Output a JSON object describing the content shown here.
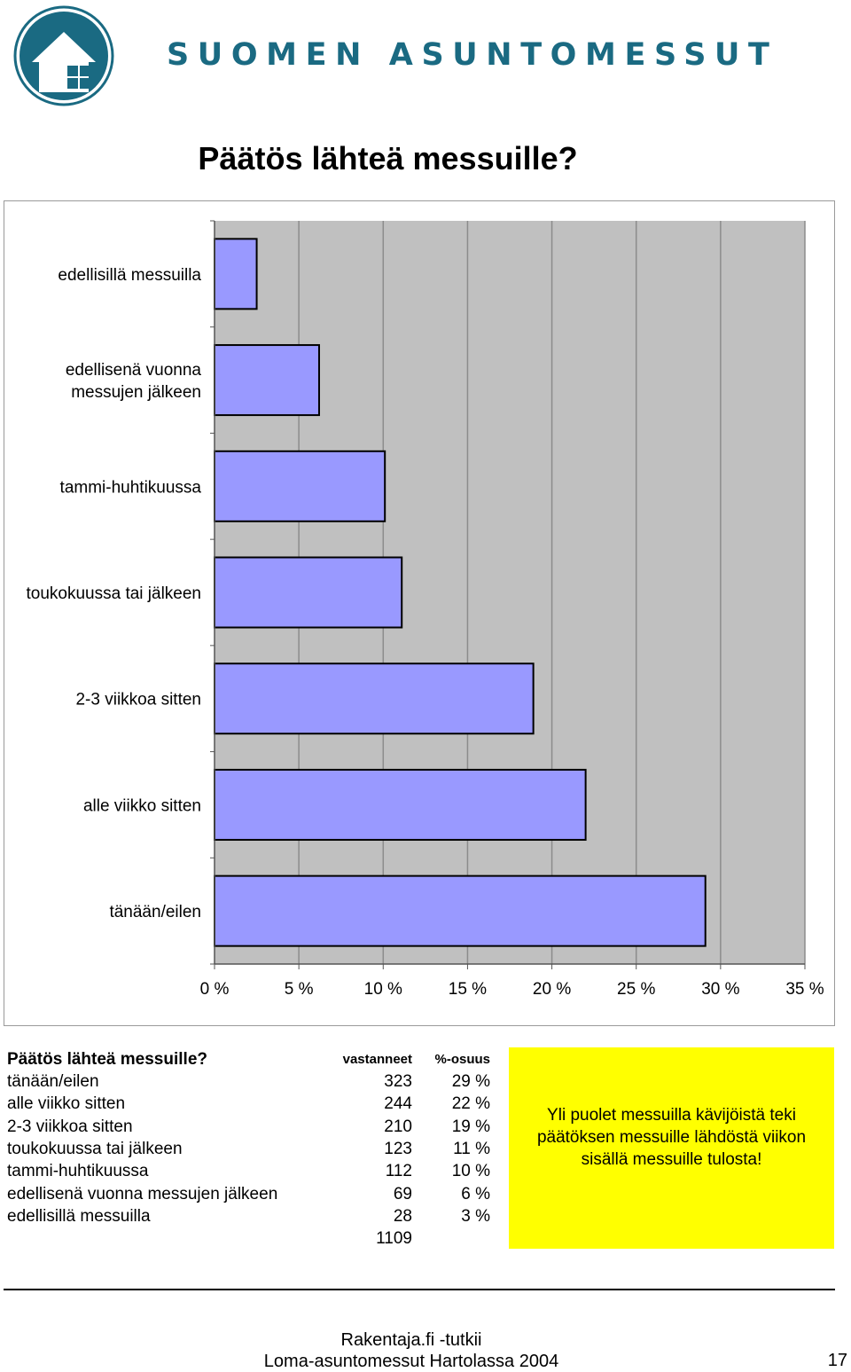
{
  "header": {
    "brand": "SUOMEN ASUNTOMESSUT",
    "title": "Päätös lähteä messuille?"
  },
  "chart_data": {
    "type": "bar",
    "orientation": "horizontal",
    "title": "",
    "xlabel": "",
    "ylabel": "",
    "categories": [
      "edellisillä messuilla",
      "edellisenä vuonna messujen jälkeen",
      "tammi-huhtikuussa",
      "toukokuussa tai jälkeen",
      "2-3 viikkoa sitten",
      "alle viikko sitten",
      "tänään/eilen"
    ],
    "category_labels": [
      [
        "edellisillä messuilla"
      ],
      [
        "edellisenä vuonna",
        "messujen jälkeen"
      ],
      [
        "tammi-huhtikuussa"
      ],
      [
        "toukokuussa tai jälkeen"
      ],
      [
        "2-3 viikkoa sitten"
      ],
      [
        "alle viikko sitten"
      ],
      [
        "tänään/eilen"
      ]
    ],
    "values": [
      2.5,
      6.2,
      10.1,
      11.1,
      18.9,
      22.0,
      29.1
    ],
    "xlim": [
      0,
      35
    ],
    "xticks": [
      0,
      5,
      10,
      15,
      20,
      25,
      30,
      35
    ],
    "xtick_labels": [
      "0 %",
      "5 %",
      "10 %",
      "15 %",
      "20 %",
      "25 %",
      "30 %",
      "35 %"
    ],
    "grid": "vertical",
    "legend": "none",
    "bar_color": "#9999ff",
    "plot_background": "#c0c0c0",
    "gridline_color": "#8c8c8c"
  },
  "table": {
    "title": "Päätös lähteä messuille?",
    "col_count": "vastanneet",
    "col_share": "%-osuus",
    "rows": [
      {
        "label": "tänään/eilen",
        "count": "323",
        "share": "29 %"
      },
      {
        "label": "alle viikko sitten",
        "count": "244",
        "share": "22 %"
      },
      {
        "label": "2-3 viikkoa sitten",
        "count": "210",
        "share": "19 %"
      },
      {
        "label": "toukokuussa tai jälkeen",
        "count": "123",
        "share": "11 %"
      },
      {
        "label": "tammi-huhtikuussa",
        "count": "112",
        "share": "10 %"
      },
      {
        "label": "edellisenä vuonna messujen jälkeen",
        "count": "69",
        "share": "6 %"
      },
      {
        "label": "edellisillä messuilla",
        "count": "28",
        "share": "3 %"
      }
    ],
    "total": "1109"
  },
  "note": {
    "text": "Yli puolet messuilla kävijöistä teki päätöksen messuille lähdöstä viikon sisällä messuille tulosta!",
    "background": "#ffff00"
  },
  "footer": {
    "line1": "Rakentaja.fi -tutkii",
    "line2": "Loma-asuntomessut Hartolassa 2004",
    "page_number": "17"
  },
  "colors": {
    "brand": "#1a6a82"
  }
}
